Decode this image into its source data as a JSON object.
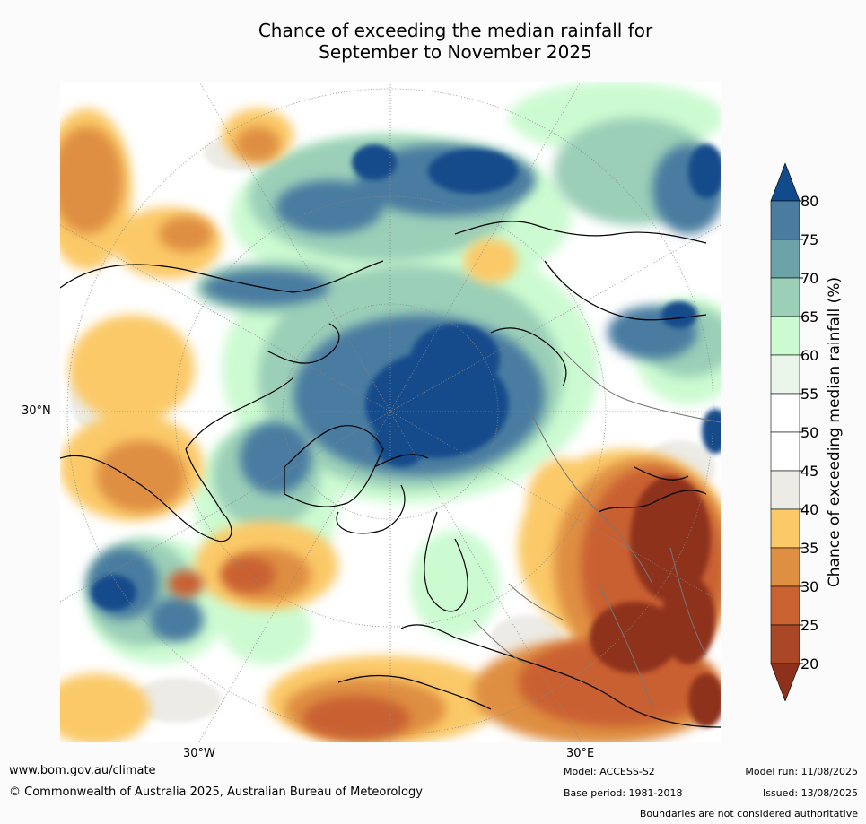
{
  "title_line1": "Chance of exceeding the median rainfall for",
  "title_line2": "September to November 2025",
  "map": {
    "latitude_labels": [
      {
        "text": "30°N"
      }
    ],
    "longitude_labels": [
      {
        "text": "30°W"
      },
      {
        "text": "30°E"
      }
    ]
  },
  "colorbar": {
    "label": "Chance of exceeding median rainfall (%)",
    "ticks": [
      "80",
      "75",
      "70",
      "65",
      "60",
      "55",
      "50",
      "45",
      "40",
      "35",
      "30",
      "25",
      "20"
    ],
    "bins_top_to_bottom": [
      {
        "range": ">80",
        "color": "#124b8b"
      },
      {
        "range": "75–80",
        "color": "#4a7ca0"
      },
      {
        "range": "70–75",
        "color": "#6ba3a8"
      },
      {
        "range": "65–70",
        "color": "#9bcfb8"
      },
      {
        "range": "60–65",
        "color": "#ccfbd1"
      },
      {
        "range": "55–60",
        "color": "#eaf5ea"
      },
      {
        "range": "50–55",
        "color": "#ffffff"
      },
      {
        "range": "45–50",
        "color": "#ffffff"
      },
      {
        "range": "40–45",
        "color": "#ecebe6"
      },
      {
        "range": "35–40",
        "color": "#fbc968"
      },
      {
        "range": "30–35",
        "color": "#df8f42"
      },
      {
        "range": "25–30",
        "color": "#c96131"
      },
      {
        "range": "20–25",
        "color": "#a94727"
      },
      {
        "range": "<20",
        "color": "#8e311c"
      }
    ]
  },
  "footer": {
    "website": "www.bom.gov.au/climate",
    "copyright": "© Commonwealth of Australia 2025, Australian Bureau of Meteorology",
    "model": "Model: ACCESS-S2",
    "base_period": "Base period: 1981-2018",
    "model_run": "Model run: 11/08/2025",
    "issued": "Issued: 13/08/2025",
    "disclaimer": "Boundaries are not considered authoritative"
  }
}
